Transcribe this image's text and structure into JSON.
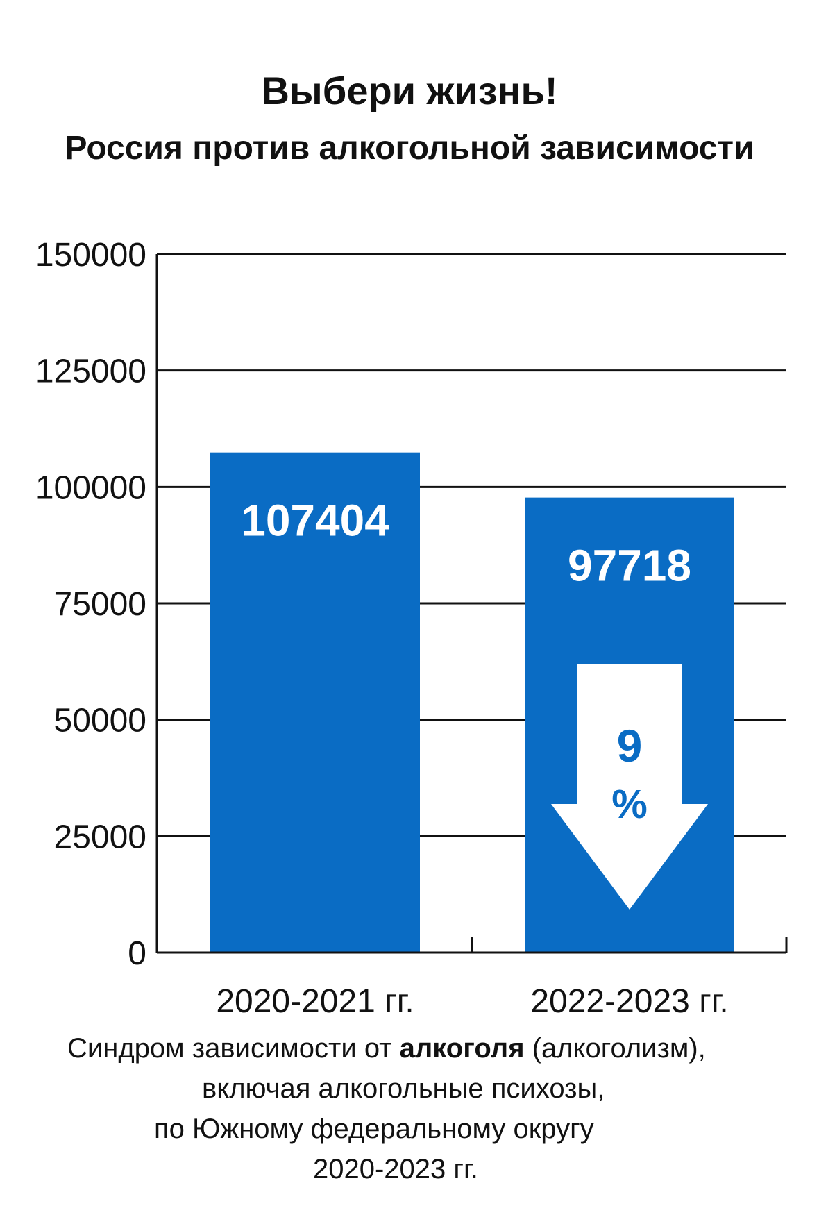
{
  "title": "Выбери жизнь!",
  "subtitle": "Россия против алкогольной зависимости",
  "caption": {
    "line1_before": "Синдром зависимости  от ",
    "line1_bold": "алкоголя",
    "line1_after": " (алкоголизм),",
    "line2": "включая алкогольные психозы,",
    "line3": "по Южному федеральному округу",
    "line4": "2020-2023 гг."
  },
  "colors": {
    "bar": "#0a6cc4",
    "axis": "#111111",
    "grid": "#111111",
    "arrow": "#ffffff",
    "arrow_text": "#0a6cc4",
    "bar_label": "#ffffff"
  },
  "chart_data": {
    "type": "bar",
    "categories": [
      "2020-2021 гг.",
      "2022-2023 гг."
    ],
    "values": [
      107404,
      97718
    ],
    "data_labels": [
      "107404",
      "97718"
    ],
    "ylim": [
      0,
      150000
    ],
    "yticks": [
      "0",
      "25000",
      "50000",
      "75000",
      "100000",
      "125000",
      "150000"
    ],
    "ytick_values": [
      0,
      25000,
      50000,
      75000,
      100000,
      125000,
      150000
    ],
    "grid": true,
    "annotation": {
      "shape": "down-arrow",
      "line1": "9",
      "line2": "%",
      "percent_change": -9
    }
  }
}
